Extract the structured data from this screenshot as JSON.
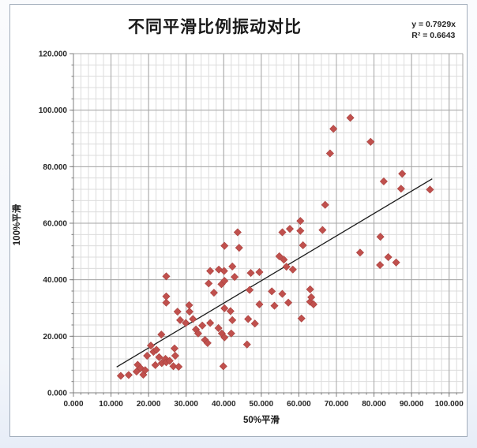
{
  "chart": {
    "title": "不同平滑比例振动对比",
    "equation_line1": "y = 0.7929x",
    "equation_line2": "R² = 0.6643",
    "x_axis": {
      "title": "50%平滑",
      "min": 0,
      "max": 100,
      "major_step": 10,
      "minor_step": 2,
      "tick_labels": [
        "0.000",
        "10.000",
        "20.000",
        "30.000",
        "40.000",
        "50.000",
        "60.000",
        "70.000",
        "80.000",
        "90.000",
        "100.000"
      ]
    },
    "y_axis": {
      "title": "100%平滑",
      "min": 0,
      "max": 120,
      "major_step": 20,
      "minor_step": 4,
      "tick_labels": [
        "0.000",
        "20.000",
        "40.000",
        "60.000",
        "80.000",
        "100.000",
        "120.000"
      ]
    },
    "colors": {
      "marker_fill": "#c0504d",
      "marker_stroke": "#a8423f",
      "trendline": "#1a1a1a",
      "major_grid": "#a6a6a6",
      "minor_grid": "#dcdcdc",
      "axis_line": "#7f7f7f",
      "tick_label": "#262626"
    }
  },
  "chart_data": {
    "type": "scatter",
    "title": "不同平滑比例振动对比",
    "xlabel": "50%平滑",
    "ylabel": "100%平滑",
    "xlim": [
      0,
      100
    ],
    "ylim": [
      0,
      120
    ],
    "grid": "major+minor",
    "legend": "none",
    "trendline": {
      "type": "linear",
      "slope": 0.7929,
      "intercept": 0,
      "equation": "y = 0.7929x",
      "r_squared": 0.6643,
      "x_start": 11.5,
      "x_end": 95.5
    },
    "points": [
      [
        12.6,
        6.0
      ],
      [
        14.7,
        6.3
      ],
      [
        16.8,
        7.5
      ],
      [
        17.1,
        9.9
      ],
      [
        17.9,
        8.7
      ],
      [
        18.6,
        6.4
      ],
      [
        19.1,
        8.0
      ],
      [
        19.6,
        13.1
      ],
      [
        20.6,
        16.7
      ],
      [
        21.3,
        14.5
      ],
      [
        21.8,
        9.8
      ],
      [
        22.1,
        15.2
      ],
      [
        22.8,
        12.6
      ],
      [
        23.4,
        20.6
      ],
      [
        23.5,
        10.5
      ],
      [
        24.5,
        12.0
      ],
      [
        24.7,
        10.8
      ],
      [
        24.7,
        31.9
      ],
      [
        24.7,
        34.1
      ],
      [
        24.7,
        41.2
      ],
      [
        25.6,
        11.3
      ],
      [
        26.6,
        9.4
      ],
      [
        26.9,
        15.7
      ],
      [
        27.1,
        13.1
      ],
      [
        27.7,
        28.7
      ],
      [
        28.0,
        9.2
      ],
      [
        28.4,
        25.7
      ],
      [
        29.9,
        24.7
      ],
      [
        30.8,
        31.0
      ],
      [
        30.9,
        28.7
      ],
      [
        31.8,
        26.1
      ],
      [
        32.6,
        22.4
      ],
      [
        33.2,
        21.0
      ],
      [
        34.3,
        23.8
      ],
      [
        35.0,
        18.7
      ],
      [
        35.7,
        17.6
      ],
      [
        36.0,
        38.7
      ],
      [
        36.4,
        24.7
      ],
      [
        36.4,
        43.1
      ],
      [
        37.4,
        35.4
      ],
      [
        38.6,
        22.9
      ],
      [
        38.7,
        43.6
      ],
      [
        39.4,
        38.4
      ],
      [
        39.5,
        21.0
      ],
      [
        39.9,
        9.4
      ],
      [
        40.1,
        43.1
      ],
      [
        40.2,
        19.6
      ],
      [
        40.2,
        29.9
      ],
      [
        40.2,
        39.6
      ],
      [
        40.2,
        52.0
      ],
      [
        41.8,
        28.9
      ],
      [
        42.0,
        21.0
      ],
      [
        42.3,
        25.7
      ],
      [
        42.3,
        44.7
      ],
      [
        42.9,
        41.0
      ],
      [
        43.7,
        56.8
      ],
      [
        44.1,
        51.3
      ],
      [
        46.2,
        17.1
      ],
      [
        46.5,
        26.1
      ],
      [
        46.9,
        36.4
      ],
      [
        47.2,
        42.4
      ],
      [
        48.3,
        24.5
      ],
      [
        49.5,
        31.3
      ],
      [
        49.5,
        42.7
      ],
      [
        52.8,
        35.9
      ],
      [
        53.5,
        30.8
      ],
      [
        54.8,
        48.3
      ],
      [
        55.6,
        35.0
      ],
      [
        55.6,
        56.8
      ],
      [
        56.0,
        47.1
      ],
      [
        56.7,
        44.6
      ],
      [
        57.2,
        31.9
      ],
      [
        57.6,
        58.0
      ],
      [
        58.4,
        43.6
      ],
      [
        60.4,
        57.3
      ],
      [
        60.4,
        60.8
      ],
      [
        60.7,
        26.3
      ],
      [
        61.1,
        52.2
      ],
      [
        63.0,
        32.2
      ],
      [
        63.0,
        36.6
      ],
      [
        63.3,
        33.8
      ],
      [
        63.9,
        31.3
      ],
      [
        66.3,
        57.6
      ],
      [
        67.0,
        66.5
      ],
      [
        68.3,
        84.7
      ],
      [
        69.2,
        93.4
      ],
      [
        73.7,
        97.3
      ],
      [
        76.3,
        49.6
      ],
      [
        79.1,
        88.8
      ],
      [
        81.6,
        45.2
      ],
      [
        81.7,
        55.2
      ],
      [
        82.6,
        74.8
      ],
      [
        83.8,
        48.0
      ],
      [
        85.9,
        46.1
      ],
      [
        87.2,
        72.2
      ],
      [
        87.5,
        77.5
      ],
      [
        94.9,
        71.9
      ]
    ]
  }
}
